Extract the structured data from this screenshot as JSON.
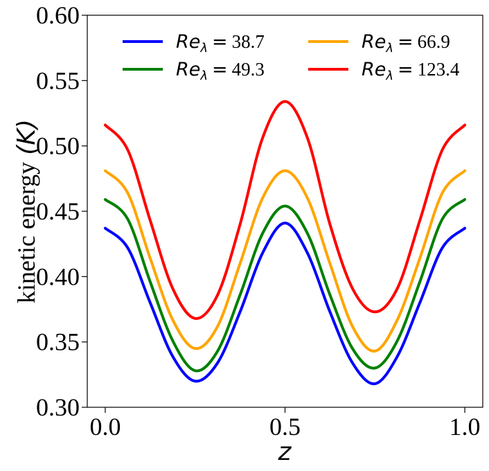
{
  "chart_data": {
    "type": "line",
    "title": "",
    "xlabel": "z",
    "ylabel_text": "kinetic energy",
    "ylabel_symbol": "(K)",
    "xlim": [
      -0.05,
      1.05
    ],
    "ylim": [
      0.3,
      0.6
    ],
    "xticks": [
      0.0,
      0.5,
      1.0
    ],
    "xtick_labels": [
      "0.0",
      "0.5",
      "1.0"
    ],
    "yticks": [
      0.3,
      0.35,
      0.4,
      0.45,
      0.5,
      0.55,
      0.6
    ],
    "ytick_labels": [
      "0.30",
      "0.35",
      "0.40",
      "0.45",
      "0.50",
      "0.55",
      "0.60"
    ],
    "grid": false,
    "legend_position": "top",
    "legend_symbol": "Re",
    "legend_subscript": "λ",
    "legend_equals": "=",
    "x": [
      0.0,
      0.0625,
      0.125,
      0.1875,
      0.25,
      0.3125,
      0.375,
      0.4375,
      0.5,
      0.5625,
      0.625,
      0.6875,
      0.75,
      0.8125,
      0.875,
      0.9375,
      1.0
    ],
    "series": [
      {
        "name": "38.7",
        "color": "#0000ff",
        "values": [
          0.437,
          0.422,
          0.38,
          0.339,
          0.32,
          0.334,
          0.373,
          0.418,
          0.441,
          0.418,
          0.373,
          0.334,
          0.318,
          0.339,
          0.38,
          0.422,
          0.437
        ]
      },
      {
        "name": "49.3",
        "color": "#008000",
        "values": [
          0.459,
          0.444,
          0.396,
          0.351,
          0.328,
          0.343,
          0.386,
          0.433,
          0.454,
          0.433,
          0.386,
          0.345,
          0.33,
          0.351,
          0.396,
          0.444,
          0.459
        ]
      },
      {
        "name": "66.9",
        "color": "#ffa500",
        "values": [
          0.481,
          0.464,
          0.414,
          0.367,
          0.345,
          0.362,
          0.41,
          0.46,
          0.481,
          0.46,
          0.41,
          0.362,
          0.343,
          0.367,
          0.414,
          0.464,
          0.481
        ]
      },
      {
        "name": "123.4",
        "color": "#ff0000",
        "values": [
          0.516,
          0.497,
          0.443,
          0.391,
          0.368,
          0.386,
          0.44,
          0.506,
          0.534,
          0.506,
          0.44,
          0.391,
          0.373,
          0.391,
          0.443,
          0.497,
          0.516
        ]
      }
    ]
  }
}
